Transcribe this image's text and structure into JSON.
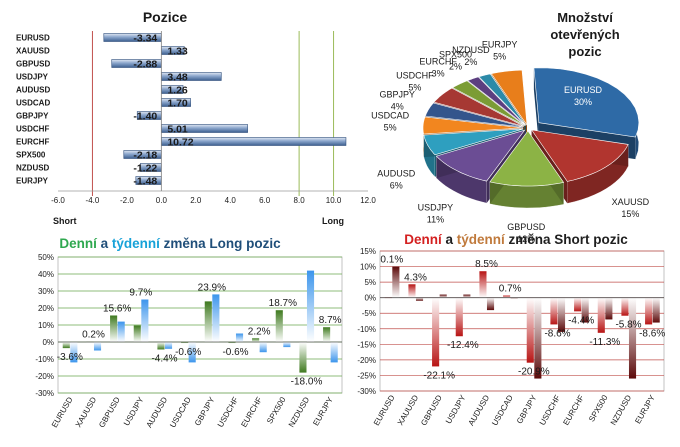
{
  "pozice": {
    "title": "Pozice",
    "short_label": "Short",
    "long_label": "Long",
    "chart_data": {
      "type": "bar",
      "orientation": "horizontal",
      "title": "Pozice",
      "categories": [
        "EURUSD",
        "XAUUSD",
        "GBPUSD",
        "USDJPY",
        "AUDUSD",
        "USDCAD",
        "GBPJPY",
        "USDCHF",
        "EURCHF",
        "SPX500",
        "NZDUSD",
        "EURJPY"
      ],
      "values": [
        -3.34,
        1.33,
        -2.88,
        3.48,
        1.26,
        1.7,
        -1.4,
        5.01,
        10.72,
        -2.18,
        -1.22,
        -1.48
      ],
      "labels": [
        "-3.34",
        "1.33",
        "-2.88",
        "3.48",
        "1.26",
        "1.70",
        "-1.40",
        "5.01",
        "10.72",
        "-2.18",
        "-1.22",
        "-1.48"
      ],
      "xlim": [
        -6,
        12
      ],
      "ticks": [
        "-6.0",
        "-4.0",
        "-2.0",
        "0.0",
        "2.0",
        "4.0",
        "6.0",
        "8.0",
        "10.0",
        "12.0"
      ],
      "colors": {
        "bar": "#7f9cc4",
        "bar_edge": "#2e4d7b",
        "axis_marker_red": "#c0504d",
        "axis_marker_green": "#9bbb59"
      }
    }
  },
  "mnozstvi": {
    "title": "Množství otevřených pozic",
    "title_lines": [
      "Množství",
      "otevřených",
      "pozic"
    ],
    "chart_data": {
      "type": "pie",
      "title": "Množství otevřených pozic",
      "labels": [
        "EURUSD",
        "XAUUSD",
        "GBPUSD",
        "USDJPY",
        "AUDUSD",
        "USDCAD",
        "GBPJPY",
        "USDCHF",
        "EURCHF",
        "SPX500",
        "NZDUSD",
        "EURJPY"
      ],
      "values": [
        30,
        15,
        12,
        11,
        6,
        5,
        4,
        5,
        3,
        2,
        2,
        5
      ],
      "value_labels": [
        "30%",
        "15%",
        "12%",
        "11%",
        "6%",
        "5%",
        "4%",
        "5%",
        "3%",
        "2%",
        "2%",
        "5%"
      ],
      "colors": [
        "#2e6aa6",
        "#b1352f",
        "#8cb345",
        "#6b4d94",
        "#2e9fbf",
        "#f2861f",
        "#33558c",
        "#a63833",
        "#7b9c35",
        "#5c3f80",
        "#2c8aa8",
        "#e87e1b"
      ]
    }
  },
  "long_change": {
    "title_parts": [
      "Denní",
      " a ",
      "týdenní",
      " změna Long pozic"
    ],
    "chart_data": {
      "type": "bar",
      "title": "Denní a týdenní změna Long pozic",
      "categories": [
        "EURUSD",
        "XAUUSD",
        "GBPUSD",
        "USDJPY",
        "AUDUSD",
        "USDCAD",
        "GBPJPY",
        "USDCHF",
        "EURCHF",
        "SPX500",
        "NZDUSD",
        "EURJPY"
      ],
      "series": [
        {
          "name": "Denní",
          "values": [
            -3.6,
            0.2,
            15.6,
            9.7,
            -4.4,
            -0.6,
            23.9,
            -0.6,
            2.2,
            18.7,
            -18.0,
            8.7
          ]
        },
        {
          "name": "týdenní",
          "values": [
            -12,
            -5,
            12,
            25,
            -4,
            -12,
            28,
            5,
            -6,
            -3,
            42,
            -12
          ]
        }
      ],
      "data_labels": [
        "-3.6%",
        "0.2%",
        "15.6%",
        "9.7%",
        "-4.4%",
        "-0.6%",
        "23.9%",
        "-0.6%",
        "2.2%",
        "18.7%",
        "-18.0%",
        "8.7%"
      ],
      "ylim": [
        -30,
        50
      ],
      "ticks": [
        "-30%",
        "-20%",
        "-10%",
        "0%",
        "10%",
        "20%",
        "30%",
        "40%",
        "50%"
      ],
      "colors": {
        "daily": "#4f8a2a",
        "weekly": "#4a9be8",
        "title_daily": "#2fa84f",
        "title_weekly": "#17a2d8",
        "title_rest": "#1f4e79",
        "grid": "#6aa84f"
      }
    }
  },
  "short_change": {
    "title_parts": [
      "Denní",
      " a ",
      "týdenní",
      " změna Short pozic"
    ],
    "chart_data": {
      "type": "bar",
      "title": "Denní a týdenní změna Short pozic",
      "categories": [
        "EURUSD",
        "XAUUSD",
        "GBPUSD",
        "USDJPY",
        "AUDUSD",
        "USDCAD",
        "GBPJPY",
        "USDCHF",
        "EURCHF",
        "SPX500",
        "NZDUSD",
        "EURJPY"
      ],
      "series": [
        {
          "name": "Denní",
          "values": [
            0.1,
            4.3,
            -22.1,
            -12.4,
            8.5,
            0.7,
            -20.9,
            -8.6,
            -4.4,
            -11.3,
            -5.8,
            -8.6
          ]
        },
        {
          "name": "týdenní",
          "values": [
            10,
            -1,
            1,
            1,
            -4,
            0,
            -26,
            -11,
            -8,
            -7,
            -26,
            -8
          ]
        }
      ],
      "data_labels": [
        "0.1%",
        "4.3%",
        "-22.1%",
        "-12.4%",
        "8.5%",
        "0.7%",
        "-20.9%",
        "-8.6%",
        "-4.4%",
        "-11.3%",
        "-5.8%",
        "-8.6%"
      ],
      "ylim": [
        -30,
        15
      ],
      "ticks": [
        "-30%",
        "-25%",
        "-20%",
        "-15%",
        "-10%",
        "-5%",
        "0%",
        "5%",
        "10%",
        "15%"
      ],
      "colors": {
        "daily": "#b81414",
        "weekly": "#6b0d0d",
        "title_daily": "#d42020",
        "title_weekly": "#c07a3c",
        "title_rest": "#1f1f1f",
        "grid": "#c0504d"
      }
    }
  }
}
